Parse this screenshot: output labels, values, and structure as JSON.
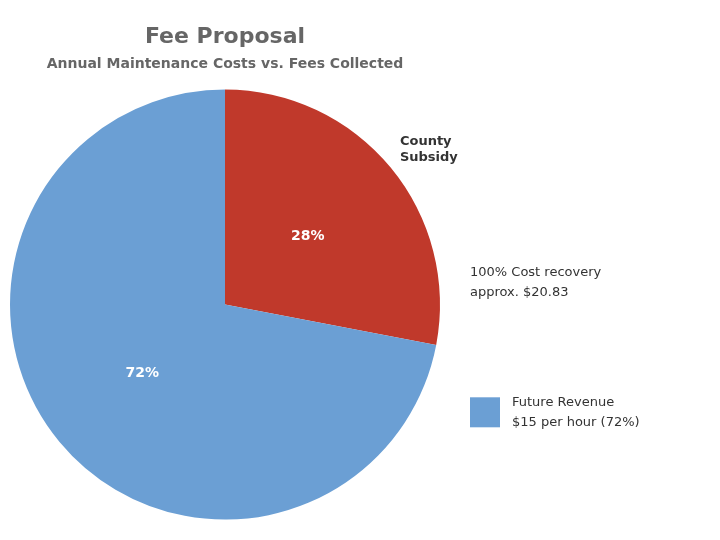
{
  "chart_data": {
    "type": "pie",
    "title": "Fee Proposal",
    "subtitle": "Annual Maintenance Costs vs. Fees Collected",
    "values": [
      28,
      72
    ],
    "value_labels": [
      "28%",
      "72%"
    ],
    "colors": [
      "#c0392b",
      "#6b9fd4"
    ],
    "data_labels": true,
    "legend": false,
    "annotations": [
      "County\nSubsidy",
      "100% Cost recovery\napprox. $20.83",
      "Future Revenue\n$15 per hour (72%)"
    ]
  }
}
